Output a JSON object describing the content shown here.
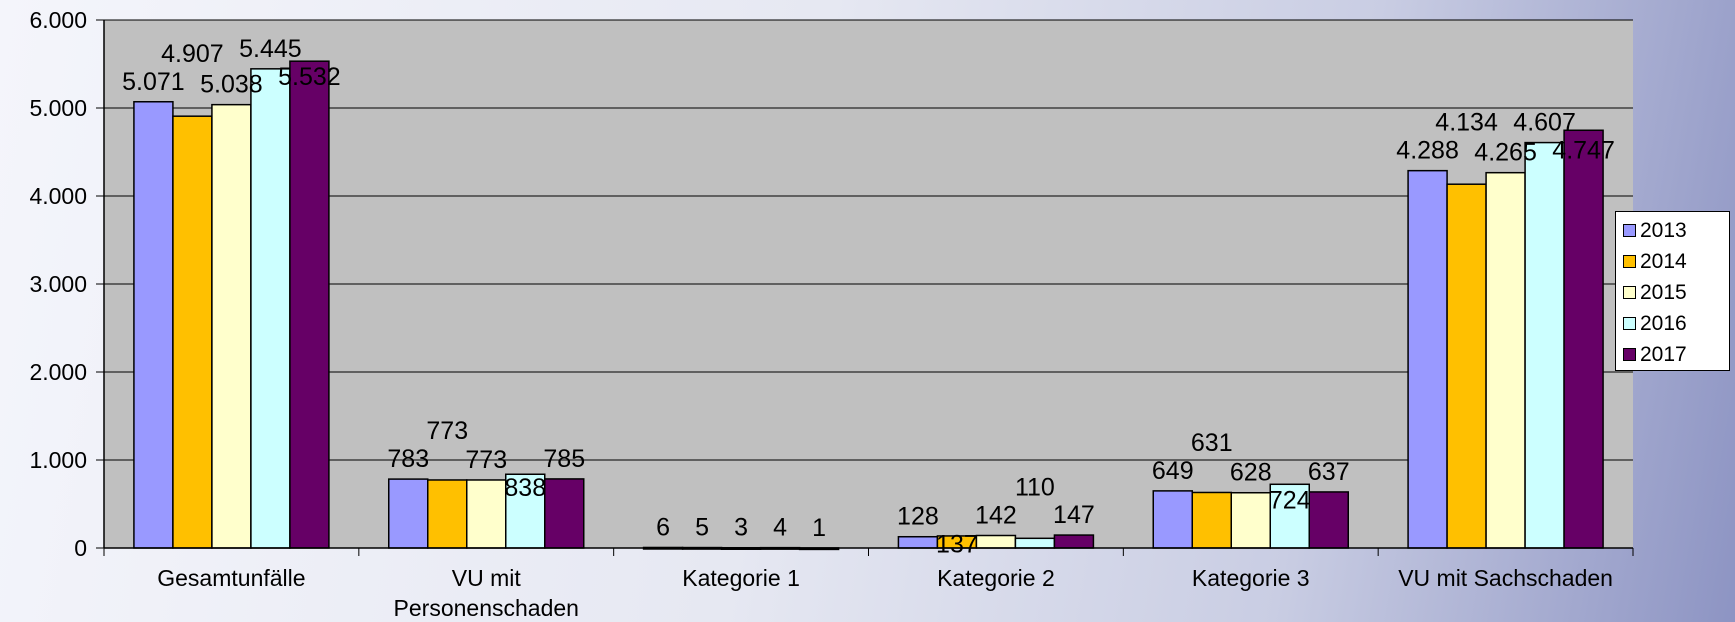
{
  "chart_data": {
    "type": "bar",
    "categories": [
      "Gesamtunfälle",
      "VU mit Personenschaden",
      "Kategorie 1",
      "Kategorie 2",
      "Kategorie 3",
      "VU mit Sachschaden"
    ],
    "category_lines": [
      [
        "Gesamtunfälle"
      ],
      [
        "VU mit",
        "Personenschaden"
      ],
      [
        "Kategorie 1"
      ],
      [
        "Kategorie 2"
      ],
      [
        "Kategorie 3"
      ],
      [
        "VU mit Sachschaden"
      ]
    ],
    "series": [
      {
        "name": "2013",
        "color": "#9999ff",
        "values": [
          5071,
          783,
          6,
          128,
          649,
          4288
        ],
        "labels": [
          "5.071",
          "783",
          "6",
          "128",
          "649",
          "4.288"
        ]
      },
      {
        "name": "2014",
        "color": "#ffc000",
        "values": [
          4907,
          773,
          5,
          137,
          631,
          4134
        ],
        "labels": [
          "4.907",
          "773",
          "5",
          "137",
          "631",
          "4.134"
        ]
      },
      {
        "name": "2015",
        "color": "#ffffcc",
        "values": [
          5038,
          773,
          3,
          142,
          628,
          4265
        ],
        "labels": [
          "5.038",
          "773",
          "3",
          "142",
          "628",
          "4.265"
        ]
      },
      {
        "name": "2016",
        "color": "#ccffff",
        "values": [
          5445,
          838,
          4,
          110,
          724,
          4607
        ],
        "labels": [
          "5.445",
          "838",
          "4",
          "110",
          "724",
          "4.607"
        ]
      },
      {
        "name": "2017",
        "color": "#660066",
        "values": [
          5532,
          785,
          1,
          147,
          637,
          4747
        ],
        "labels": [
          "5.532",
          "785",
          "1",
          "147",
          "637",
          "4.747"
        ]
      }
    ],
    "ylim": [
      0,
      6000
    ],
    "yticks": [
      0,
      1000,
      2000,
      3000,
      4000,
      5000,
      6000
    ],
    "ytick_labels": [
      "0",
      "1.000",
      "2.000",
      "3.000",
      "4.000",
      "5.000",
      "6.000"
    ],
    "grid": true,
    "plot_background": "#c0c0c0",
    "legend_position": "right",
    "xlabel": "",
    "ylabel": "",
    "title": ""
  }
}
